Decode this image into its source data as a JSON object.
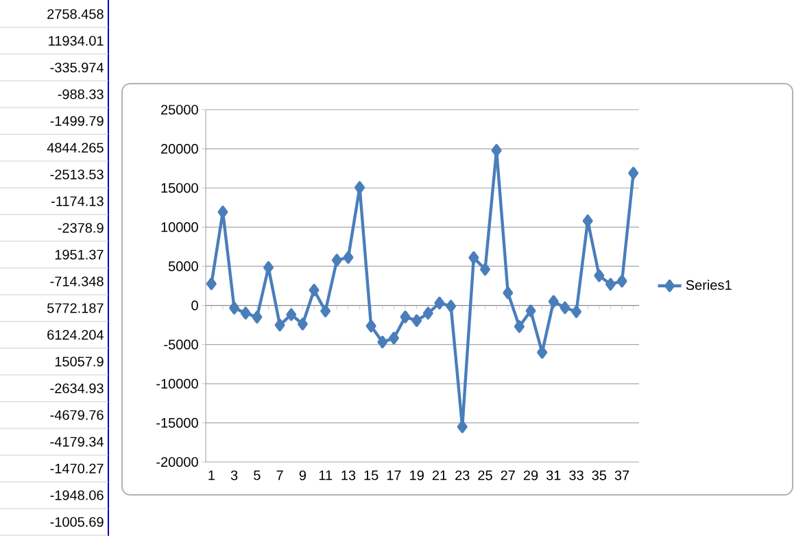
{
  "chart_data": {
    "type": "line",
    "categories": [
      "1",
      null,
      "3",
      null,
      "5",
      null,
      "7",
      null,
      "9",
      null,
      "11",
      null,
      "13",
      null,
      "15",
      null,
      "17",
      null,
      "19",
      null,
      "21",
      null,
      "23",
      null,
      "25",
      null,
      "27",
      null,
      "29",
      null,
      "31",
      null,
      "33",
      null,
      "35",
      null,
      "37",
      null
    ],
    "series": [
      {
        "name": "Series1",
        "color": "#4a7ebb",
        "values": [
          2758.458,
          11934.01,
          -335.974,
          -988.33,
          -1499.79,
          4844.265,
          -2513.53,
          -1174.13,
          -2378.9,
          1951.37,
          -714.348,
          5772.187,
          6124.204,
          15057.9,
          -2634.93,
          -4679.76,
          -4179.34,
          -1470.27,
          -1948.06,
          -1005.69,
          300,
          -100,
          -15500,
          6100,
          4600,
          19800,
          1600,
          -2700,
          -700,
          -6000,
          500,
          -300,
          -800,
          10800,
          3800,
          2700,
          3100,
          16900
        ]
      }
    ],
    "value_labels": [
      "2758.458",
      "11934.01",
      "-335.974",
      "-988.33",
      "-1499.79",
      "4844.265",
      "-2513.53",
      "-1174.13",
      "-2378.9",
      "1951.37",
      "-714.348",
      "5772.187",
      "6124.204",
      "15057.9",
      "-2634.93",
      "-4679.76",
      "-4179.34",
      "-1470.27",
      "-1948.06",
      "-1005.69",
      null,
      null,
      null,
      null,
      null,
      null,
      null,
      null,
      null,
      null,
      null,
      null,
      null,
      null,
      null,
      null,
      null,
      null
    ],
    "ylim": [
      -20000,
      25000
    ],
    "yticks": [
      -20000,
      -15000,
      -10000,
      -5000,
      0,
      5000,
      10000,
      15000,
      20000,
      25000
    ],
    "grid": "y",
    "legend": "right",
    "marker": "diamond",
    "line_style": "solid"
  }
}
